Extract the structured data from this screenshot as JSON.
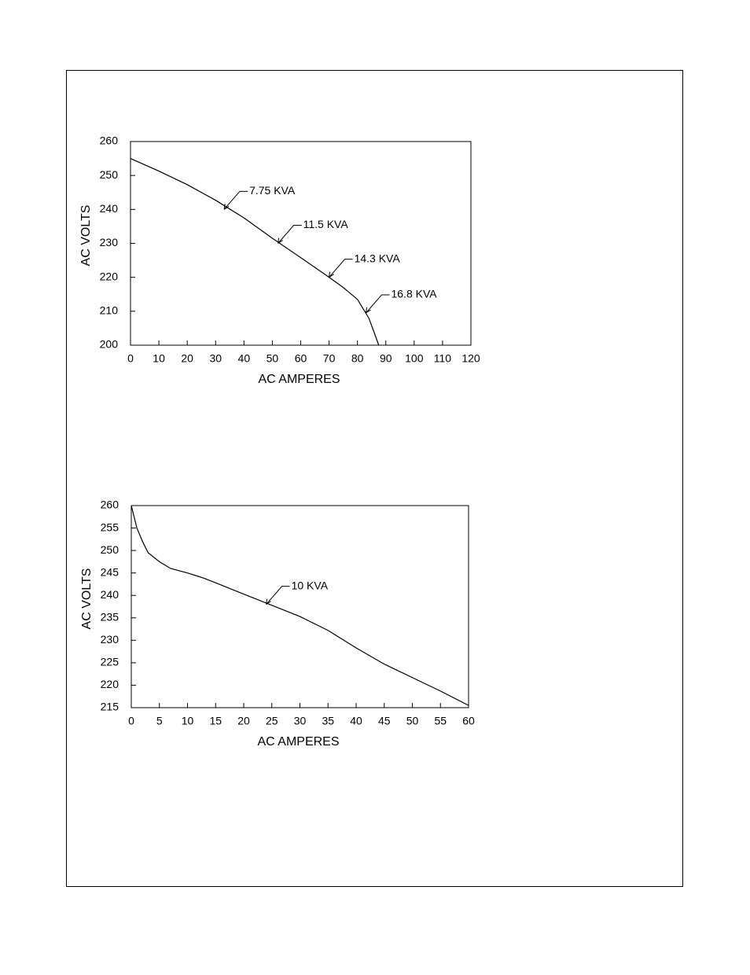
{
  "chart_data": [
    {
      "type": "line",
      "x_label": "AC AMPERES",
      "y_label": "AC VOLTS",
      "xlim": [
        0,
        120
      ],
      "xticks": [
        0,
        10,
        20,
        30,
        40,
        50,
        60,
        70,
        80,
        90,
        100,
        110,
        120
      ],
      "ylim": [
        200,
        260
      ],
      "yticks": [
        200,
        210,
        220,
        230,
        240,
        250,
        260
      ],
      "series": [
        {
          "color": "#000000",
          "x": [
            0,
            10,
            20,
            30,
            40,
            50,
            60,
            70,
            75,
            80,
            84,
            86,
            87.5
          ],
          "values": [
            255,
            251.3,
            247.3,
            242.7,
            237.5,
            231.5,
            225.8,
            220,
            217,
            213.5,
            208,
            203.5,
            200
          ]
        }
      ],
      "annotations": [
        {
          "text": "7.75 KVA",
          "x": 33,
          "y": 240
        },
        {
          "text": "11.5 KVA",
          "x": 52,
          "y": 230
        },
        {
          "text": "14.3 KVA",
          "x": 70,
          "y": 220
        },
        {
          "text": "16.8 KVA",
          "x": 83,
          "y": 209.5
        }
      ]
    },
    {
      "type": "line",
      "x_label": "AC AMPERES",
      "y_label": "AC VOLTS",
      "xlim": [
        0,
        60
      ],
      "xticks": [
        0,
        5,
        10,
        15,
        20,
        25,
        30,
        35,
        40,
        45,
        50,
        55,
        60
      ],
      "ylim": [
        215,
        260
      ],
      "yticks": [
        215,
        220,
        225,
        230,
        235,
        240,
        245,
        250,
        255,
        260
      ],
      "series": [
        {
          "color": "#000000",
          "x": [
            0,
            1,
            2,
            3,
            5,
            7,
            10,
            13,
            15,
            20,
            25,
            30,
            35,
            40,
            45,
            50,
            55,
            60
          ],
          "values": [
            260,
            255,
            252,
            249.5,
            247.5,
            246,
            245,
            243.8,
            242.8,
            240.3,
            237.8,
            235.3,
            232.2,
            228.3,
            224.7,
            221.7,
            218.7,
            215.5
          ]
        }
      ],
      "annotations": [
        {
          "text": "10 KVA",
          "x": 24,
          "y": 238
        }
      ]
    }
  ]
}
